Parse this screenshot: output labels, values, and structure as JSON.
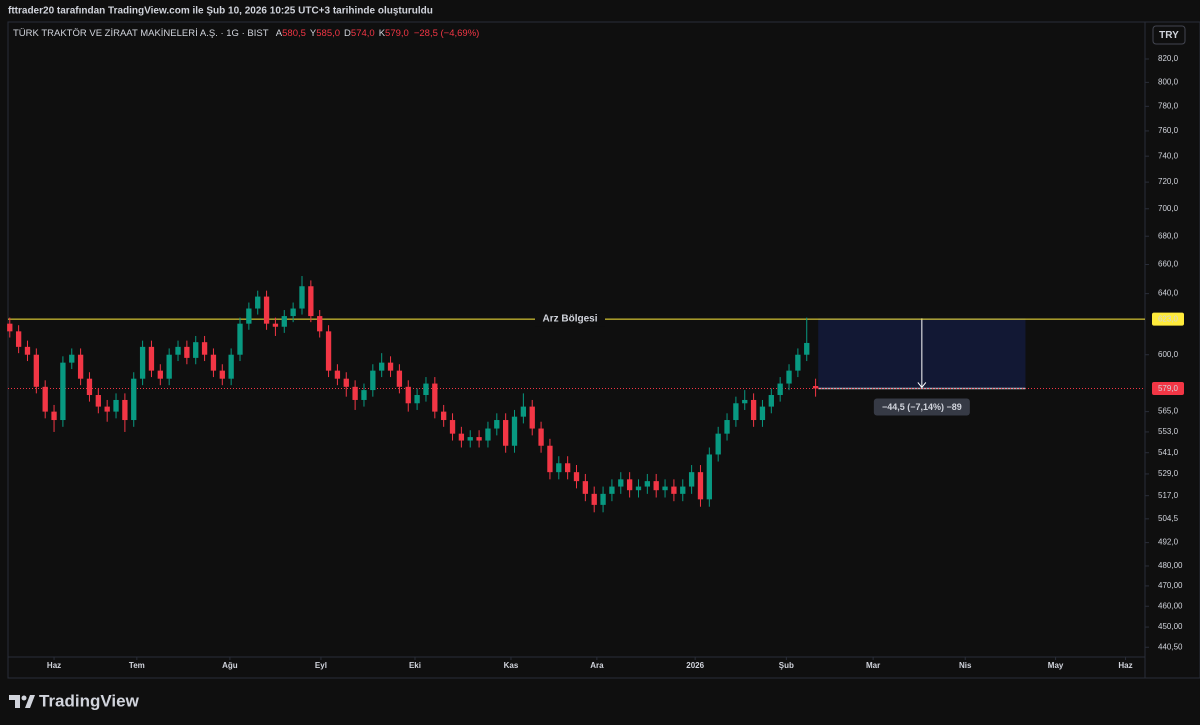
{
  "chart_data": {
    "type": "candlestick",
    "caption": "fttrader20 tarafından TradingView.com ile Şub 10, 2026 10:25 UTC+3 tarihinde oluşturuldu",
    "title": "TÜRK TRAKTÖR VE ZİRAAT MAKİNELERİ A.Ş. · 1G · BIST",
    "ohlc_legend": [
      {
        "key": "A",
        "text": "580,5"
      },
      {
        "key": "Y",
        "text": "585,0"
      },
      {
        "key": "D",
        "text": "574,0"
      },
      {
        "key": "K",
        "text": "579,0"
      }
    ],
    "change": "−28,5 (−4,69%)",
    "currency": "TRY",
    "brand": "TradingView",
    "up_color": "#089981",
    "down_color": "#f23645",
    "log_scale": true,
    "xlim": [
      -0.2,
      128.2
    ],
    "xticks": [
      {
        "value": 5,
        "label": "Haz"
      },
      {
        "value": 14.35,
        "label": "Tem"
      },
      {
        "value": 24.86,
        "label": "Ağu"
      },
      {
        "value": 35.14,
        "label": "Eyl"
      },
      {
        "value": 45.76,
        "label": "Eki"
      },
      {
        "value": 56.6,
        "label": "Kas"
      },
      {
        "value": 66.3,
        "label": "Ara"
      },
      {
        "value": 77.4,
        "label": "2026"
      },
      {
        "value": 87.7,
        "label": "Şub"
      },
      {
        "value": 97.5,
        "label": "Mar"
      },
      {
        "value": 107.9,
        "label": "Nis"
      },
      {
        "value": 118.1,
        "label": "May"
      },
      {
        "value": 126,
        "label": "Haz"
      }
    ],
    "ylim": [
      436,
      832.2
    ],
    "yticks": [
      {
        "value": 820,
        "label": "820,0"
      },
      {
        "value": 800,
        "label": "800,0"
      },
      {
        "value": 780,
        "label": "780,0"
      },
      {
        "value": 760,
        "label": "760,0"
      },
      {
        "value": 740,
        "label": "740,0"
      },
      {
        "value": 720,
        "label": "720,0"
      },
      {
        "value": 700,
        "label": "700,0"
      },
      {
        "value": 680,
        "label": "680,0"
      },
      {
        "value": 660,
        "label": "660,0"
      },
      {
        "value": 640,
        "label": "640,0"
      },
      {
        "value": 600,
        "label": "600,0"
      },
      {
        "value": 565,
        "label": "565,0"
      },
      {
        "value": 553,
        "label": "553,0"
      },
      {
        "value": 541,
        "label": "541,0"
      },
      {
        "value": 529,
        "label": "529,0"
      },
      {
        "value": 517,
        "label": "517,0"
      },
      {
        "value": 504.5,
        "label": "504,5"
      },
      {
        "value": 492,
        "label": "492,0"
      },
      {
        "value": 480,
        "label": "480,00"
      },
      {
        "value": 470,
        "label": "470,00"
      },
      {
        "value": 460,
        "label": "460,00"
      },
      {
        "value": 450,
        "label": "450,00"
      },
      {
        "value": 440.5,
        "label": "440,50"
      }
    ],
    "open": [
      620,
      615,
      605,
      600,
      580,
      565,
      560,
      595,
      600,
      585,
      575,
      568,
      565,
      572,
      560,
      585,
      605,
      590,
      585,
      600,
      605,
      598,
      608,
      600,
      590,
      585,
      600,
      620,
      630,
      638,
      620,
      618,
      625,
      630,
      645,
      625,
      615,
      590,
      585,
      580,
      572,
      578,
      590,
      595,
      590,
      580,
      570,
      575,
      582,
      565,
      560,
      552,
      548,
      550,
      548,
      555,
      560,
      545,
      562,
      568,
      555,
      545,
      530,
      535,
      530,
      525,
      518,
      512,
      518,
      522,
      526,
      520,
      522,
      525,
      520,
      522,
      518,
      522,
      530,
      515,
      540,
      552,
      560,
      570,
      572,
      560,
      568,
      575,
      582,
      590,
      600,
      580.5
    ],
    "high": [
      624,
      619,
      609,
      604,
      584,
      569,
      599,
      604,
      604,
      589,
      579,
      572,
      576,
      576,
      589,
      609,
      609,
      594,
      604,
      609,
      609,
      612,
      612,
      604,
      594,
      604,
      624,
      634,
      642,
      642,
      624,
      629,
      634,
      652,
      649,
      629,
      619,
      594,
      589,
      584,
      582,
      594,
      601,
      599,
      594,
      584,
      579,
      586,
      586,
      569,
      564,
      556,
      554,
      554,
      559,
      564,
      564,
      566,
      576,
      572,
      559,
      549,
      539,
      539,
      534,
      529,
      522,
      522,
      526,
      530,
      530,
      526,
      529,
      529,
      526,
      526,
      526,
      534,
      534,
      544,
      556,
      564,
      574,
      578,
      576,
      572,
      579,
      586,
      594,
      604,
      624,
      585
    ],
    "low": [
      611,
      601,
      596,
      576,
      561,
      553,
      556,
      591,
      581,
      571,
      564,
      559,
      561,
      553,
      556,
      581,
      586,
      581,
      581,
      596,
      594,
      594,
      596,
      586,
      581,
      581,
      596,
      616,
      626,
      616,
      612,
      614,
      621,
      626,
      621,
      611,
      586,
      581,
      574,
      566,
      568,
      574,
      586,
      586,
      576,
      565,
      566,
      571,
      561,
      556,
      548,
      544,
      544,
      544,
      544,
      551,
      541,
      541,
      558,
      551,
      541,
      526,
      526,
      526,
      521,
      514,
      508,
      508,
      514,
      518,
      516,
      516,
      518,
      516,
      516,
      514,
      514,
      518,
      511,
      511,
      536,
      548,
      556,
      566,
      556,
      556,
      564,
      571,
      578,
      586,
      596,
      574
    ],
    "close": [
      615,
      605,
      600,
      580,
      565,
      560,
      595,
      600,
      585,
      575,
      568,
      565,
      572,
      560,
      585,
      605,
      590,
      585,
      600,
      605,
      598,
      608,
      600,
      590,
      585,
      600,
      620,
      630,
      638,
      620,
      618,
      625,
      630,
      645,
      625,
      615,
      590,
      585,
      580,
      572,
      578,
      590,
      595,
      590,
      580,
      570,
      575,
      582,
      565,
      560,
      552,
      548,
      550,
      548,
      555,
      560,
      545,
      562,
      568,
      555,
      545,
      530,
      535,
      530,
      525,
      518,
      512,
      518,
      522,
      526,
      520,
      522,
      525,
      520,
      522,
      518,
      522,
      530,
      515,
      540,
      552,
      560,
      570,
      572,
      560,
      568,
      575,
      582,
      590,
      600,
      607.5,
      579
    ],
    "hlines": [
      {
        "value": 623,
        "label": "623,0",
        "annotation": "Arz Bölgesi",
        "color": "#ffeb3b",
        "style": "solid"
      },
      {
        "value": 579,
        "label": "579,0",
        "color": "#f23645",
        "style": "dotted"
      }
    ],
    "measure": {
      "from": 623.5,
      "to": 579,
      "x_range": [
        91.3,
        114.7
      ],
      "label": "−44,5 (−7,14%) −89",
      "color": "#131a38"
    }
  }
}
